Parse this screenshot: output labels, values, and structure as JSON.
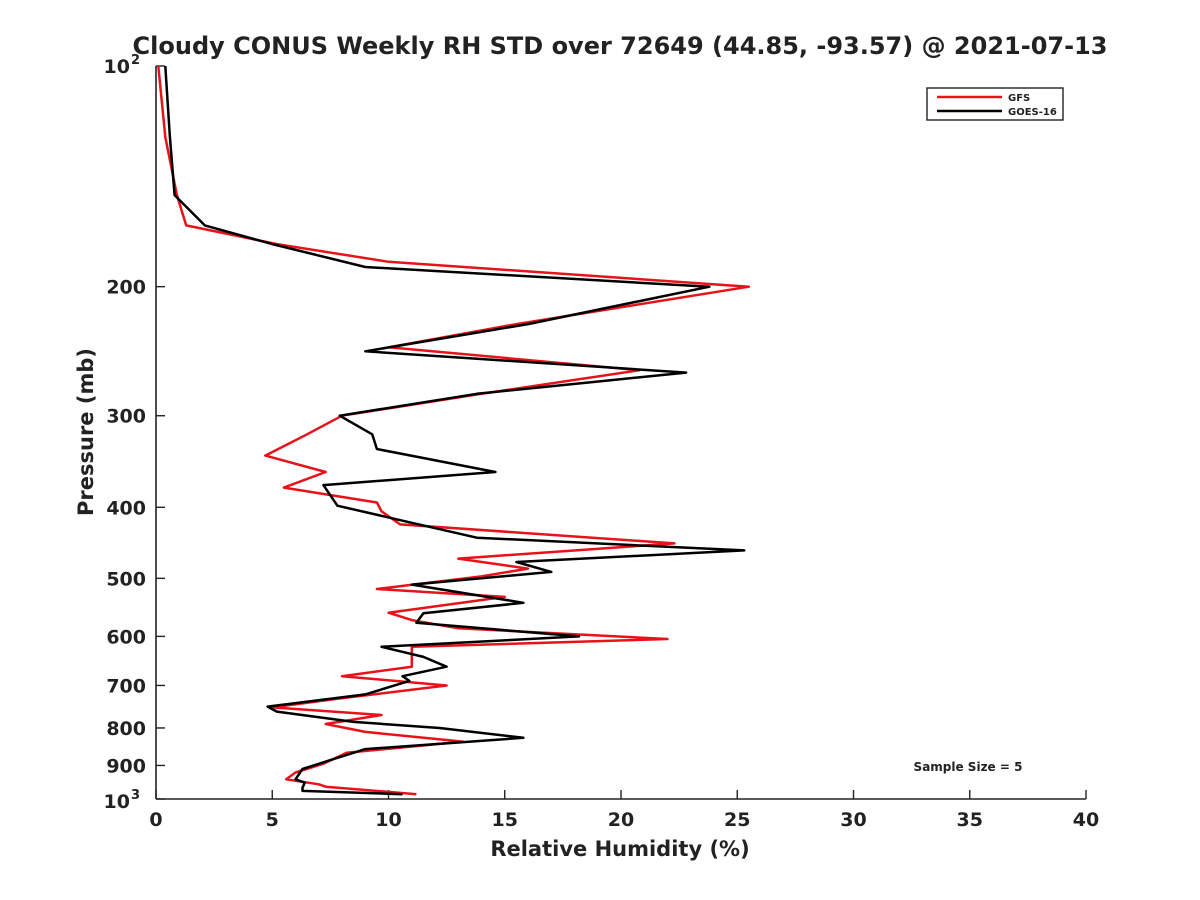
{
  "chart_data": {
    "type": "line",
    "title": "Cloudy CONUS Weekly RH STD over 72649 (44.85, -93.57) @ 2021-07-13",
    "xlabel": "Relative Humidity (%)",
    "ylabel": "Pressure (mb)",
    "xlim": [
      0,
      40
    ],
    "ylim": [
      100,
      1000
    ],
    "yscale": "log",
    "y_reversed": true,
    "x_ticks": [
      "0",
      "5",
      "10",
      "15",
      "20",
      "25",
      "30",
      "35",
      "40"
    ],
    "y_ticks": [
      {
        "value": 100,
        "base": "10",
        "exp": "2"
      },
      {
        "value": 200,
        "label": "200"
      },
      {
        "value": 300,
        "label": "300"
      },
      {
        "value": 400,
        "label": "400"
      },
      {
        "value": 500,
        "label": "500"
      },
      {
        "value": 600,
        "label": "600"
      },
      {
        "value": 700,
        "label": "700"
      },
      {
        "value": 800,
        "label": "800"
      },
      {
        "value": 900,
        "label": "900"
      },
      {
        "value": 1000,
        "base": "10",
        "exp": "3"
      }
    ],
    "grid": false,
    "legend_position": "top-right",
    "annotation": "Sample Size = 5",
    "series": [
      {
        "name": "GFS",
        "color": "#e8131a",
        "points": [
          [
            0.1,
            100
          ],
          [
            0.4,
            125
          ],
          [
            0.9,
            150
          ],
          [
            1.3,
            165
          ],
          [
            5.2,
            175
          ],
          [
            10.0,
            185
          ],
          [
            25.5,
            200
          ],
          [
            15.5,
            225
          ],
          [
            10.0,
            242
          ],
          [
            20.8,
            260
          ],
          [
            14.0,
            280
          ],
          [
            8.0,
            300
          ],
          [
            6.5,
            318
          ],
          [
            4.7,
            340
          ],
          [
            7.3,
            358
          ],
          [
            5.5,
            376
          ],
          [
            9.5,
            394
          ],
          [
            9.7,
            405
          ],
          [
            10.5,
            422
          ],
          [
            22.3,
            448
          ],
          [
            13.0,
            470
          ],
          [
            16.0,
            485
          ],
          [
            14.0,
            497
          ],
          [
            9.5,
            517
          ],
          [
            15.0,
            530
          ],
          [
            10.0,
            557
          ],
          [
            11.0,
            570
          ],
          [
            13.0,
            585
          ],
          [
            22.0,
            605
          ],
          [
            11.0,
            620
          ],
          [
            11.0,
            643
          ],
          [
            11.0,
            660
          ],
          [
            8.0,
            680
          ],
          [
            12.5,
            700
          ],
          [
            7.8,
            730
          ],
          [
            5.0,
            750
          ],
          [
            9.7,
            768
          ],
          [
            7.3,
            790
          ],
          [
            9.0,
            810
          ],
          [
            13.2,
            835
          ],
          [
            8.2,
            865
          ],
          [
            7.2,
            895
          ],
          [
            6.0,
            920
          ],
          [
            5.6,
            940
          ],
          [
            7.0,
            955
          ],
          [
            7.3,
            962
          ],
          [
            11.2,
            985
          ]
        ]
      },
      {
        "name": "GOES-16",
        "color": "#000000",
        "points": [
          [
            0.4,
            100
          ],
          [
            0.6,
            125
          ],
          [
            0.8,
            150
          ],
          [
            2.1,
            165
          ],
          [
            5.0,
            175
          ],
          [
            9.0,
            188
          ],
          [
            23.8,
            200
          ],
          [
            16.0,
            225
          ],
          [
            9.0,
            245
          ],
          [
            22.8,
            262
          ],
          [
            13.8,
            280
          ],
          [
            7.9,
            300
          ],
          [
            9.3,
            318
          ],
          [
            9.5,
            333
          ],
          [
            14.6,
            358
          ],
          [
            7.2,
            373
          ],
          [
            7.8,
            398
          ],
          [
            11.0,
            420
          ],
          [
            13.8,
            440
          ],
          [
            25.3,
            458
          ],
          [
            15.5,
            475
          ],
          [
            17.0,
            490
          ],
          [
            11.0,
            510
          ],
          [
            15.8,
            540
          ],
          [
            11.5,
            558
          ],
          [
            11.2,
            575
          ],
          [
            18.2,
            600
          ],
          [
            9.7,
            620
          ],
          [
            11.5,
            640
          ],
          [
            12.5,
            660
          ],
          [
            10.6,
            680
          ],
          [
            10.9,
            690
          ],
          [
            9.0,
            720
          ],
          [
            4.8,
            748
          ],
          [
            5.2,
            760
          ],
          [
            8.5,
            785
          ],
          [
            12.2,
            800
          ],
          [
            15.8,
            825
          ],
          [
            9.0,
            855
          ],
          [
            7.5,
            885
          ],
          [
            6.3,
            910
          ],
          [
            6.0,
            940
          ],
          [
            6.4,
            950
          ],
          [
            6.3,
            965
          ],
          [
            6.3,
            975
          ],
          [
            10.6,
            985
          ]
        ]
      }
    ]
  }
}
